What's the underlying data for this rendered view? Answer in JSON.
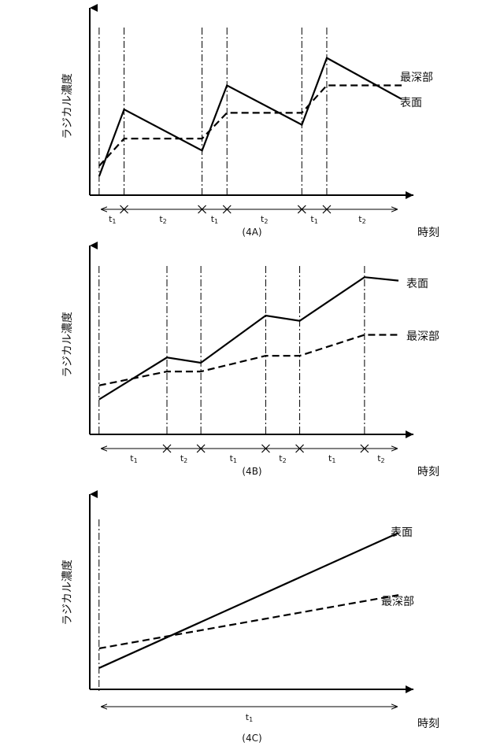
{
  "chart_data": [
    {
      "type": "line",
      "id": "A",
      "caption": "(4A)",
      "ylabel": "ラジカル濃度",
      "xlabel": "時刻",
      "ylim": [
        0,
        100
      ],
      "xlim": [
        0,
        100
      ],
      "dividers": [
        3,
        11,
        36,
        44,
        68,
        76
      ],
      "segments": [
        {
          "label": "t1",
          "main": "t",
          "sub": "1",
          "from": 3,
          "to": 11
        },
        {
          "label": "t2",
          "main": "t",
          "sub": "2",
          "from": 11,
          "to": 36
        },
        {
          "label": "t1",
          "main": "t",
          "sub": "1",
          "from": 36,
          "to": 44
        },
        {
          "label": "t2",
          "main": "t",
          "sub": "2",
          "from": 44,
          "to": 68
        },
        {
          "label": "t1",
          "main": "t",
          "sub": "1",
          "from": 68,
          "to": 76
        },
        {
          "label": "t2",
          "main": "t",
          "sub": "2",
          "from": 76,
          "to": 100
        }
      ],
      "series": [
        {
          "name": "表面",
          "style": "solid",
          "x": [
            3,
            11,
            36,
            44,
            68,
            76,
            100
          ],
          "y": [
            11,
            50,
            26,
            64,
            41,
            80,
            56
          ]
        },
        {
          "name": "最深部",
          "style": "dashed",
          "x": [
            3,
            11,
            36,
            44,
            68,
            76,
            100
          ],
          "y": [
            17,
            33,
            33,
            48,
            48,
            64,
            64
          ]
        }
      ]
    },
    {
      "type": "line",
      "id": "B",
      "caption": "(4B)",
      "ylabel": "ラジカル濃度",
      "xlabel": "時刻",
      "ylim": [
        0,
        100
      ],
      "xlim": [
        0,
        100
      ],
      "dividers": [
        3,
        25,
        36,
        57,
        68,
        89
      ],
      "segments": [
        {
          "label": "t1",
          "main": "t",
          "sub": "1",
          "from": 3,
          "to": 25
        },
        {
          "label": "t2",
          "main": "t",
          "sub": "2",
          "from": 25,
          "to": 36
        },
        {
          "label": "t1",
          "main": "t",
          "sub": "1",
          "from": 36,
          "to": 57
        },
        {
          "label": "t2",
          "main": "t",
          "sub": "2",
          "from": 57,
          "to": 68
        },
        {
          "label": "t1",
          "main": "t",
          "sub": "1",
          "from": 68,
          "to": 89
        },
        {
          "label": "t2",
          "main": "t",
          "sub": "2",
          "from": 89,
          "to": 100
        }
      ],
      "series": [
        {
          "name": "表面",
          "style": "solid",
          "x": [
            3,
            25,
            36,
            57,
            68,
            89,
            100
          ],
          "y": [
            20,
            44,
            41,
            68,
            65,
            90,
            88
          ]
        },
        {
          "name": "最深部",
          "style": "dashed",
          "x": [
            3,
            25,
            36,
            57,
            68,
            89,
            100
          ],
          "y": [
            28,
            36,
            36,
            45,
            45,
            57,
            57
          ]
        }
      ]
    },
    {
      "type": "line",
      "id": "C",
      "caption": "(4C)",
      "ylabel": "ラジカル濃度",
      "xlabel": "時刻",
      "ylim": [
        0,
        100
      ],
      "xlim": [
        0,
        100
      ],
      "dividers": [
        3
      ],
      "segments": [
        {
          "label": "t1",
          "main": "t",
          "sub": "1",
          "from": 3,
          "to": 100
        }
      ],
      "series": [
        {
          "name": "表面",
          "style": "solid",
          "x": [
            3,
            100
          ],
          "y": [
            12,
            88
          ]
        },
        {
          "name": "最深部",
          "style": "dashed",
          "x": [
            3,
            100
          ],
          "y": [
            23,
            53
          ]
        }
      ]
    }
  ]
}
